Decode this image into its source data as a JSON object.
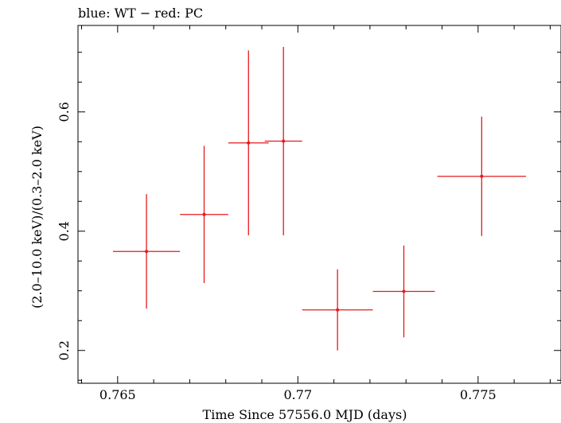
{
  "chart_data": {
    "type": "scatter",
    "title": "blue: WT − red: PC",
    "xlabel": "Time Since 57556.0 MJD (days)",
    "ylabel": "(2.0–10.0 keV)/(0.3–2.0 keV)",
    "xlim": [
      0.7639,
      0.7773
    ],
    "ylim": [
      0.145,
      0.745
    ],
    "x_ticks": [
      {
        "value": 0.765,
        "label": "0.765"
      },
      {
        "value": 0.77,
        "label": "0.77"
      },
      {
        "value": 0.775,
        "label": "0.775"
      }
    ],
    "y_ticks": [
      {
        "value": 0.2,
        "label": "0.2"
      },
      {
        "value": 0.4,
        "label": "0.4"
      },
      {
        "value": 0.6,
        "label": "0.6"
      }
    ],
    "x_minor_step": 0.001,
    "y_minor_step": 0.05,
    "grid": false,
    "series": [
      {
        "color": "#e41a1c",
        "points": [
          {
            "x": 0.7658,
            "xerr": 0.00093,
            "y": 0.366,
            "yerr": 0.096
          },
          {
            "x": 0.7674,
            "xerr": 0.00067,
            "y": 0.428,
            "yerr": 0.115
          },
          {
            "x": 0.76863,
            "xerr": 0.00056,
            "y": 0.548,
            "yerr": 0.155
          },
          {
            "x": 0.7696,
            "xerr": 0.00052,
            "y": 0.551,
            "yerr": 0.158
          },
          {
            "x": 0.7711,
            "xerr": 0.00098,
            "y": 0.268,
            "yerr": 0.068
          },
          {
            "x": 0.77294,
            "xerr": 0.00086,
            "y": 0.299,
            "yerr": 0.077
          },
          {
            "x": 0.7751,
            "xerr": 0.00123,
            "y": 0.492,
            "yerr": 0.1
          }
        ]
      }
    ]
  }
}
